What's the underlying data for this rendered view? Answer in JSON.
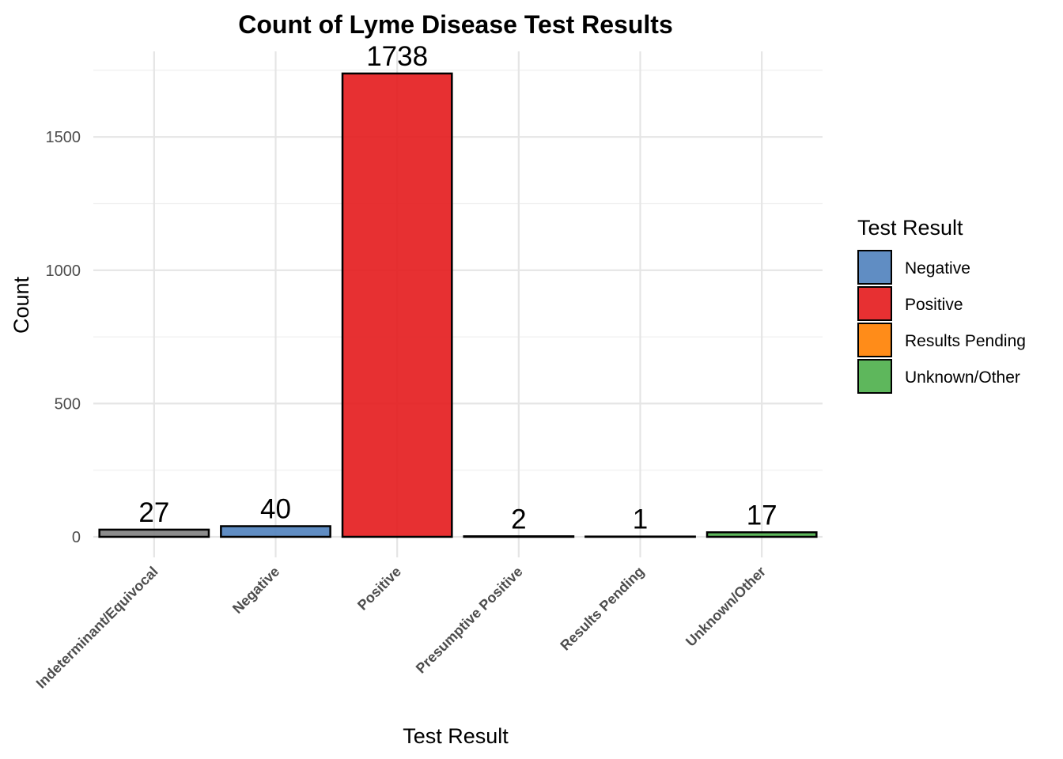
{
  "chart_data": {
    "type": "bar",
    "title": "Count of Lyme Disease Test Results",
    "xlabel": "Test Result",
    "ylabel": "Count",
    "categories": [
      "Indeterminant/Equivocal",
      "Negative",
      "Positive",
      "Presumptive Positive",
      "Results Pending",
      "Unknown/Other"
    ],
    "values": [
      27,
      40,
      1738,
      2,
      1,
      17
    ],
    "data_labels": [
      "27",
      "40",
      "1738",
      "2",
      "1",
      "17"
    ],
    "bar_colors": [
      "#808080",
      "#4f81bd",
      "#e41a1c",
      "#808080",
      "#ff7f00",
      "#4daf4a"
    ],
    "y_ticks": [
      0,
      500,
      1000,
      1500
    ],
    "y_tick_labels": [
      "0",
      "500",
      "1000",
      "1500"
    ],
    "ylim": [
      -82,
      1835
    ],
    "grid": true,
    "legend": {
      "title": "Test Result",
      "position": "right",
      "entries": [
        {
          "label": "Negative",
          "color": "#4f81bd"
        },
        {
          "label": "Positive",
          "color": "#e41a1c"
        },
        {
          "label": "Results Pending",
          "color": "#ff7f00"
        },
        {
          "label": "Unknown/Other",
          "color": "#4daf4a"
        }
      ]
    }
  }
}
